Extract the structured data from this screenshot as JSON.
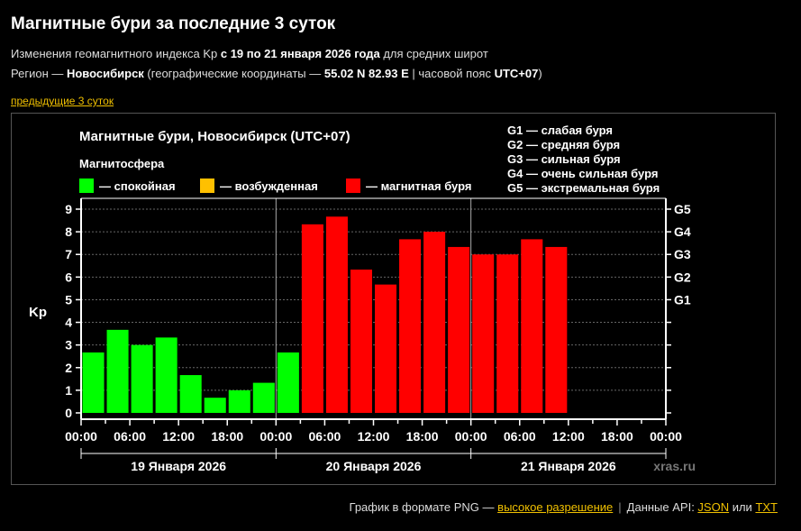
{
  "header": {
    "title": "Магнитные бури за последние 3 суток",
    "line1_prefix": "Изменения геомагнитного индекса Kp ",
    "line1_bold": "с 19 по 21 января 2026 года",
    "line1_suffix": " для средних широт",
    "line2_prefix": "Регион — ",
    "line2_city": "Новосибирск",
    "line2_mid": " (географические координаты — ",
    "line2_coords": "55.02 N 82.93 E",
    "line2_mid2": " | часовой пояс ",
    "line2_tz": "UTC+07",
    "line2_suffix": ")",
    "prev_link": "предыдущие 3 суток"
  },
  "footer": {
    "png_text": "График в формате PNG — ",
    "png_link": "высокое разрешение",
    "sep": "|",
    "api_text": "Данные API: ",
    "json_link": "JSON",
    "or_text": " или ",
    "txt_link": "TXT"
  },
  "chart_data": {
    "type": "bar",
    "title": "Магнитные бури, Новосибирск (UTC+07)",
    "legend_title": "Магнитосфера",
    "legend": [
      {
        "label": "— спокойная",
        "color": "#00ff00"
      },
      {
        "label": "— возбужденная",
        "color": "#ffc000"
      },
      {
        "label": "— магнитная буря",
        "color": "#ff0000"
      }
    ],
    "storm_scale": [
      "G1 — слабая буря",
      "G2 — средняя буря",
      "G3 — сильная буря",
      "G4 — очень сильная буря",
      "G5 — экстремальная буря"
    ],
    "ylabel": "Kp",
    "ylim": [
      0,
      9
    ],
    "yticks": [
      "0",
      "1",
      "2",
      "3",
      "4",
      "5",
      "6",
      "7",
      "8",
      "9"
    ],
    "right_ticks": [
      {
        "label": "G1",
        "value": 5
      },
      {
        "label": "G2",
        "value": 6
      },
      {
        "label": "G3",
        "value": 7
      },
      {
        "label": "G4",
        "value": 8
      },
      {
        "label": "G5",
        "value": 9
      }
    ],
    "xticks": [
      "00:00",
      "06:00",
      "12:00",
      "18:00",
      "00:00",
      "06:00",
      "12:00",
      "18:00",
      "00:00",
      "06:00",
      "12:00",
      "18:00",
      "00:00"
    ],
    "days": [
      "19 Января 2026",
      "20 Января 2026",
      "21 Января 2026"
    ],
    "values": [
      2.67,
      3.67,
      3.0,
      3.33,
      1.67,
      0.67,
      1.0,
      1.33,
      2.67,
      8.33,
      8.67,
      6.33,
      5.67,
      7.67,
      8.0,
      7.33,
      7.0,
      7.0,
      7.67,
      7.33
    ],
    "colors": {
      "quiet": "#00ff00",
      "active": "#ffc000",
      "storm": "#ff0000"
    },
    "grid": true,
    "watermark": "xras.ru"
  }
}
